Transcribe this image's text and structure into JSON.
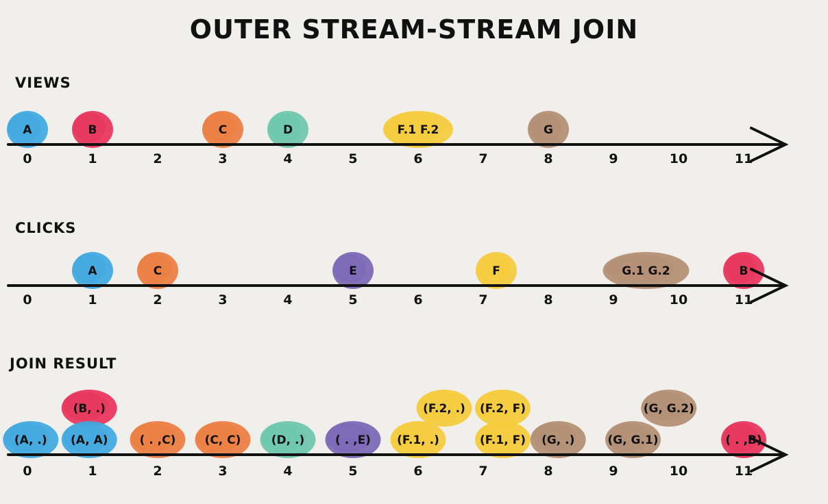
{
  "title": "OUTER STREAM-STREAM JOIN",
  "colors": {
    "A": "#3fa8e0",
    "B": "#e8335a",
    "C": "#ec7d40",
    "D": "#6cc6ad",
    "E": "#7a66b5",
    "F": "#f5cb3a",
    "G": "#b38e72",
    "axis": "#111111",
    "background": "#f1efec"
  },
  "lanes": [
    {
      "id": "views",
      "label": "VIEWS",
      "ticks": [
        "0",
        "1",
        "2",
        "3",
        "4",
        "5",
        "6",
        "7",
        "8",
        "9",
        "10",
        "11"
      ],
      "events": [
        {
          "label": "A",
          "t": 0,
          "color": "A",
          "level": 0
        },
        {
          "label": "B",
          "t": 1,
          "color": "B",
          "level": 0
        },
        {
          "label": "C",
          "t": 3,
          "color": "C",
          "level": 0
        },
        {
          "label": "D",
          "t": 4,
          "color": "D",
          "level": 0
        },
        {
          "label": "F.1  F.2",
          "t": 6,
          "color": "F",
          "level": 0,
          "wide": 1.7
        },
        {
          "label": "G",
          "t": 8,
          "color": "G",
          "level": 0
        }
      ]
    },
    {
      "id": "clicks",
      "label": "CLICKS",
      "ticks": [
        "0",
        "1",
        "2",
        "3",
        "4",
        "5",
        "6",
        "7",
        "8",
        "9",
        "10",
        "11"
      ],
      "events": [
        {
          "label": "A",
          "t": 1,
          "color": "A",
          "level": 0
        },
        {
          "label": "C",
          "t": 2,
          "color": "C",
          "level": 0
        },
        {
          "label": "E",
          "t": 5,
          "color": "E",
          "level": 0
        },
        {
          "label": "F",
          "t": 7.2,
          "color": "F",
          "level": 0
        },
        {
          "label": "G.1  G.2",
          "t": 9.5,
          "color": "G",
          "level": 0,
          "wide": 2.1
        },
        {
          "label": "B",
          "t": 11,
          "color": "B",
          "level": 0
        }
      ]
    },
    {
      "id": "join",
      "label": "JOIN RESULT",
      "ticks": [
        "0",
        "1",
        "2",
        "3",
        "4",
        "5",
        "6",
        "7",
        "8",
        "9",
        "10",
        "11"
      ],
      "events": [
        {
          "label": "(A, .)",
          "t": 0.05,
          "color": "A",
          "level": 0,
          "wide": 1.35
        },
        {
          "label": "(B, .)",
          "t": 0.95,
          "color": "B",
          "level": 1,
          "wide": 1.35
        },
        {
          "label": "(A, A)",
          "t": 0.95,
          "color": "A",
          "level": 0,
          "wide": 1.35
        },
        {
          "label": "( . ,C)",
          "t": 2,
          "color": "C",
          "level": 0,
          "wide": 1.35
        },
        {
          "label": "(C, C)",
          "t": 3,
          "color": "C",
          "level": 0,
          "wide": 1.35
        },
        {
          "label": "(D, .)",
          "t": 4,
          "color": "D",
          "level": 0,
          "wide": 1.35
        },
        {
          "label": "( . ,E)",
          "t": 5,
          "color": "E",
          "level": 0,
          "wide": 1.35
        },
        {
          "label": "(F.2, .)",
          "t": 6.4,
          "color": "F",
          "level": 1,
          "wide": 1.35
        },
        {
          "label": "(F.2, F)",
          "t": 7.3,
          "color": "F",
          "level": 1,
          "wide": 1.35
        },
        {
          "label": "(F.1, .)",
          "t": 6,
          "color": "F",
          "level": 0,
          "wide": 1.35
        },
        {
          "label": "(F.1, F)",
          "t": 7.3,
          "color": "F",
          "level": 0,
          "wide": 1.35
        },
        {
          "label": "(G, .)",
          "t": 8.15,
          "color": "G",
          "level": 0,
          "wide": 1.35
        },
        {
          "label": "(G, G.2)",
          "t": 9.85,
          "color": "G",
          "level": 1,
          "wide": 1.35
        },
        {
          "label": "(G, G.1)",
          "t": 9.3,
          "color": "G",
          "level": 0,
          "wide": 1.35
        },
        {
          "label": "( . ,B)",
          "t": 11,
          "color": "B",
          "level": 0,
          "wide": 1.1
        }
      ]
    }
  ]
}
